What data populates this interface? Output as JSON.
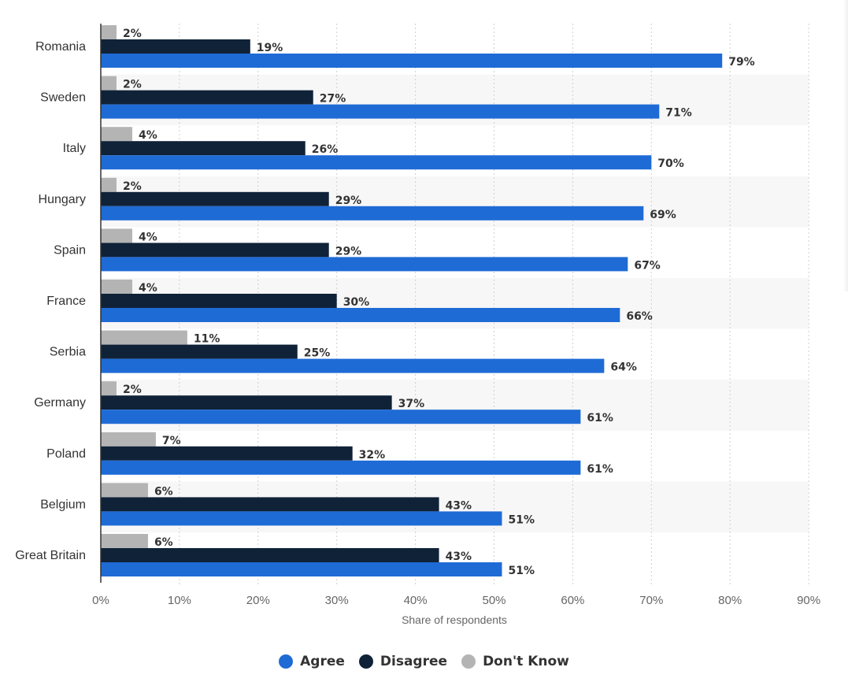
{
  "chart_data": {
    "type": "bar",
    "orientation": "horizontal",
    "categories": [
      "Romania",
      "Sweden",
      "Italy",
      "Hungary",
      "Spain",
      "France",
      "Serbia",
      "Germany",
      "Poland",
      "Belgium",
      "Great Britain"
    ],
    "series": [
      {
        "name": "Don't Know",
        "color": "#b4b4b4",
        "values": [
          2,
          2,
          4,
          2,
          4,
          4,
          11,
          2,
          7,
          6,
          6
        ]
      },
      {
        "name": "Disagree",
        "color": "#0f2238",
        "values": [
          19,
          27,
          26,
          29,
          29,
          30,
          25,
          37,
          32,
          43,
          43
        ]
      },
      {
        "name": "Agree",
        "color": "#1f6bd6",
        "values": [
          79,
          71,
          70,
          69,
          67,
          66,
          64,
          61,
          61,
          51,
          51
        ]
      }
    ],
    "xlabel": "Share of respondents",
    "xlim": [
      0,
      90
    ],
    "xticks": [
      "0%",
      "10%",
      "20%",
      "30%",
      "40%",
      "50%",
      "60%",
      "70%",
      "80%",
      "90%"
    ],
    "value_suffix": "%",
    "grid": true,
    "legend_position": "bottom-center",
    "legend": [
      {
        "label": "Agree",
        "color": "#1f6bd6"
      },
      {
        "label": "Disagree",
        "color": "#0f2238"
      },
      {
        "label": "Don't Know",
        "color": "#b4b4b4"
      }
    ]
  }
}
